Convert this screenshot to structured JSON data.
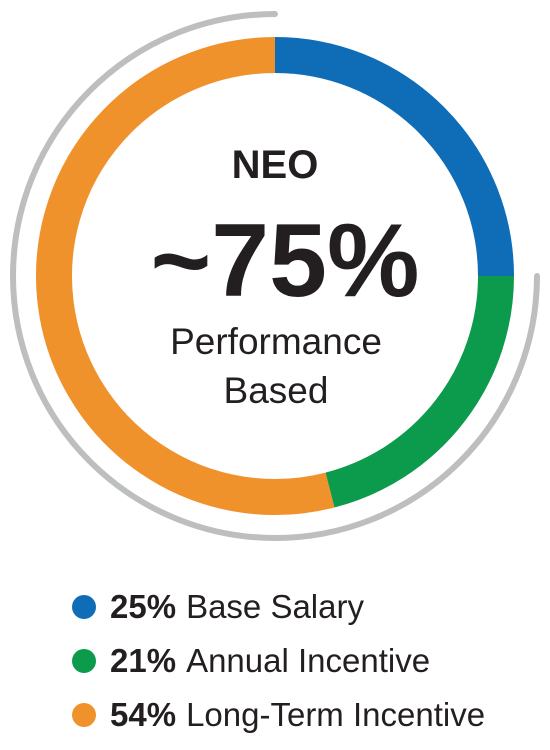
{
  "chart_data": {
    "type": "pie",
    "title": "NEO",
    "headline": "~75%",
    "subtitle_line1": "Performance",
    "subtitle_line2": "Based",
    "legend_position": "bottom",
    "slices": [
      {
        "label": "Base Salary",
        "value": 25,
        "value_label": "25%",
        "color": "#0f6db8"
      },
      {
        "label": "Annual Incentive",
        "value": 21,
        "value_label": "21%",
        "color": "#0c9a4c"
      },
      {
        "label": "Long-Term Incentive",
        "value": 54,
        "value_label": "54%",
        "color": "#f0922b"
      }
    ],
    "highlight_fraction": 0.75,
    "highlight_color": "#bcbec0",
    "headline_color": "#0f6db8"
  }
}
